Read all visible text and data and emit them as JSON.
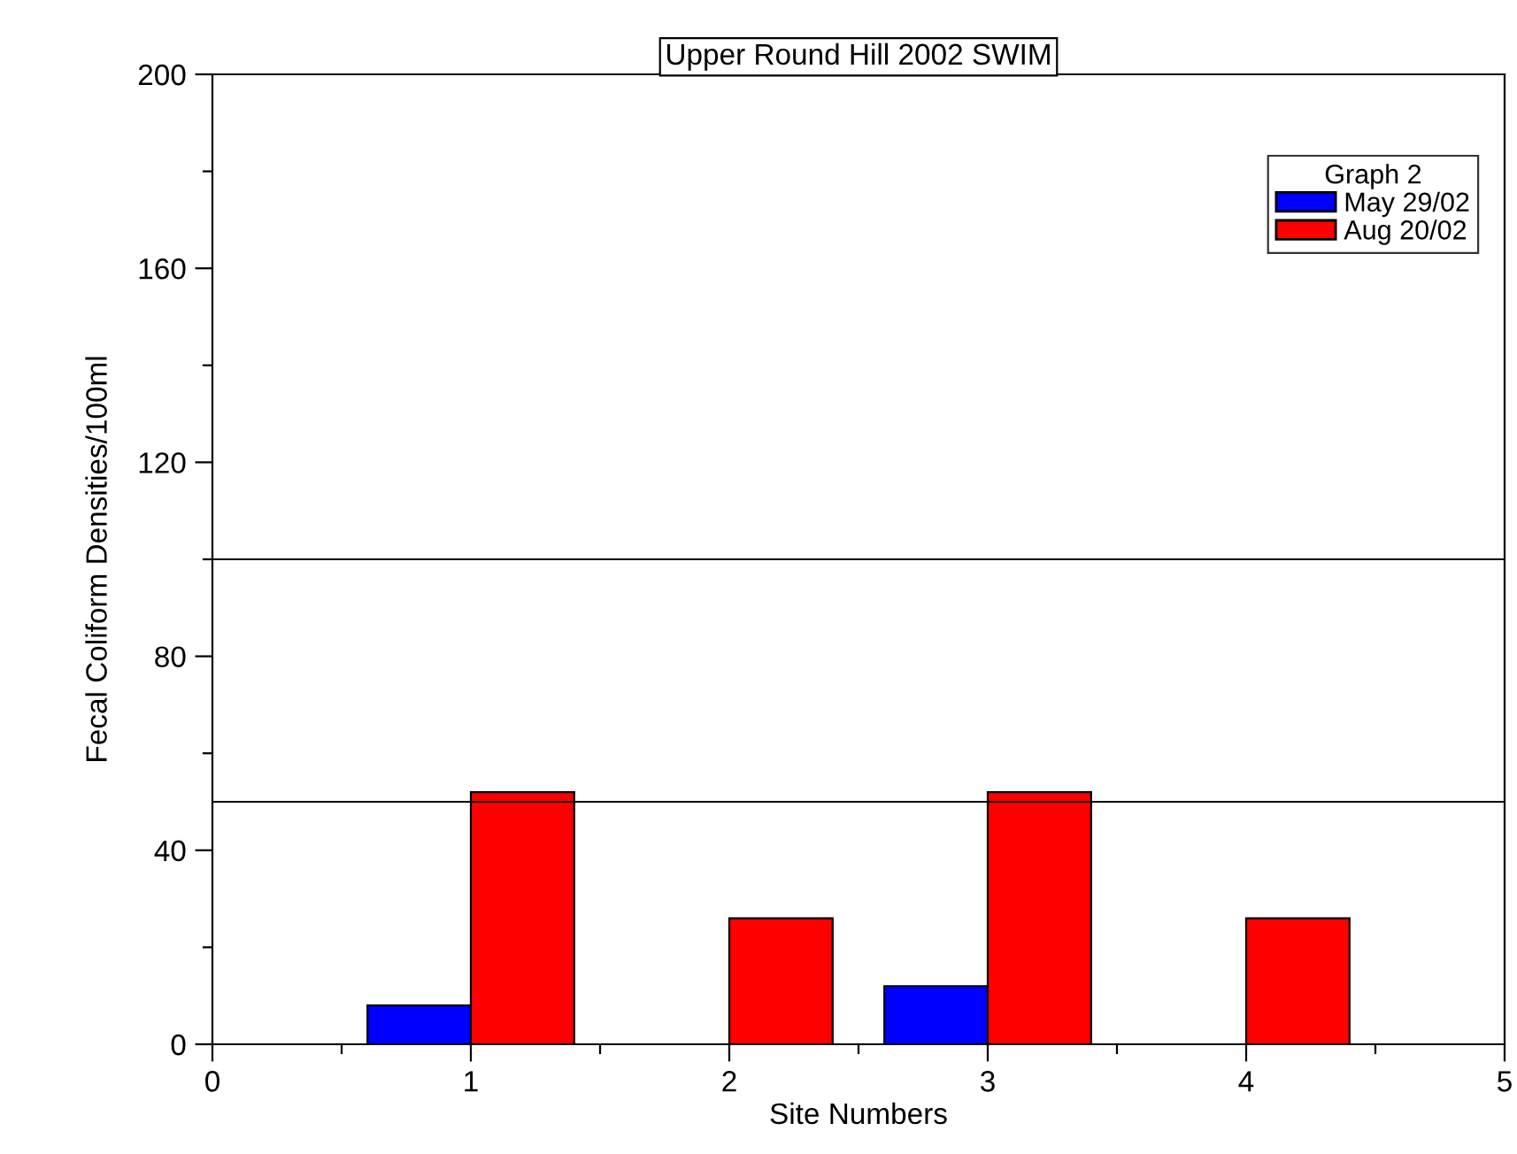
{
  "chart_data": {
    "type": "bar",
    "title": "Upper Round Hill 2002 SWIM",
    "xlabel": "Site Numbers",
    "ylabel": "Fecal Coliform Densities/100ml",
    "legend_title": "Graph 2",
    "legend": "top right",
    "grid": false,
    "x": [
      1,
      2,
      3,
      4
    ],
    "series": [
      {
        "name": "May 29/02",
        "color": "#0000ff",
        "values": [
          8,
          0,
          12,
          0
        ]
      },
      {
        "name": "Aug 20/02",
        "color": "#ff0000",
        "values": [
          52,
          26,
          52,
          26
        ]
      }
    ],
    "xlim": [
      0,
      5
    ],
    "xticks": [
      0,
      1,
      2,
      3,
      4,
      5
    ],
    "ylim": [
      0,
      200
    ],
    "yticks": [
      0,
      40,
      80,
      120,
      160,
      200
    ],
    "ref_lines": [
      {
        "axis": "y",
        "value": 50,
        "color": "#000000"
      },
      {
        "axis": "y",
        "value": 100,
        "color": "#000000"
      }
    ]
  }
}
